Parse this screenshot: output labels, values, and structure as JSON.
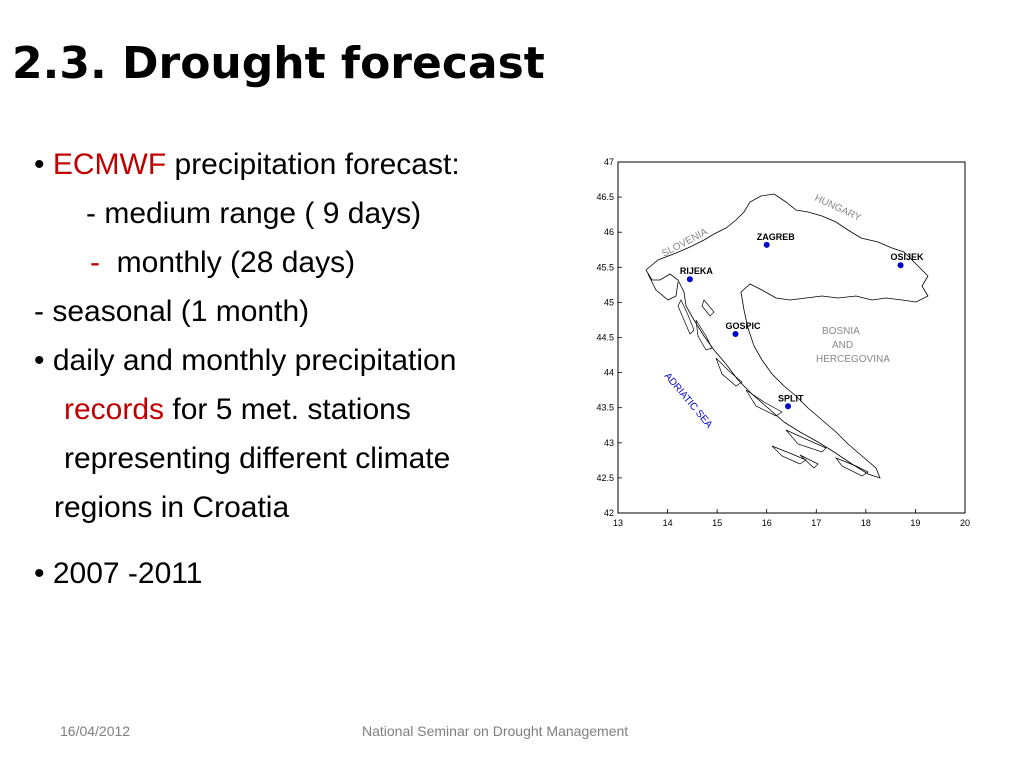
{
  "slide": {
    "title": "2.3. Drought forecast",
    "lines": {
      "l1_bullet": "•",
      "l1_red": "ECMWF",
      "l1_rest": " precipitation forecast:",
      "l2": "- medium range ( 9 days)",
      "l3_dash": "-",
      "l3_rest": "monthly (28 days)",
      "l4": "-  seasonal (1 month)",
      "l5": "• daily and monthly precipitation",
      "l6_red": "records",
      "l6_rest": " for 5 met. stations",
      "l7": "representing different climate",
      "l8": "regions in  Croatia",
      "l9": "• 2007 -2011"
    }
  },
  "map": {
    "y_ticks": [
      "47",
      "46.5",
      "46",
      "45.5",
      "45",
      "44.5",
      "44",
      "43.5",
      "43",
      "42.5",
      "42"
    ],
    "x_ticks": [
      "13",
      "14",
      "15",
      "16",
      "17",
      "18",
      "19",
      "20"
    ],
    "stations": [
      {
        "name": "ZAGREB",
        "lon": 16.0,
        "lat": 45.82
      },
      {
        "name": "OSIJEK",
        "lon": 18.7,
        "lat": 45.53
      },
      {
        "name": "RIJEKA",
        "lon": 14.45,
        "lat": 45.33
      },
      {
        "name": "GOSPIC",
        "lon": 15.37,
        "lat": 44.55
      },
      {
        "name": "SPLIT",
        "lon": 16.43,
        "lat": 43.52
      }
    ],
    "region_labels": {
      "slovenia": "SLOVENIA",
      "hungary": "HUNGARY",
      "bosnia_line1": "BOSNIA",
      "bosnia_line2": "AND",
      "bosnia_line3": "HERCEGOVINA",
      "sea": "ADRIATIC SEA"
    },
    "colors": {
      "station": "#0000cc",
      "border": "#000000",
      "region_label": "#888888",
      "sea_label": "#0000cc"
    }
  },
  "footer": {
    "date": "16/04/2012",
    "center": "National Seminar on Drought Management"
  }
}
